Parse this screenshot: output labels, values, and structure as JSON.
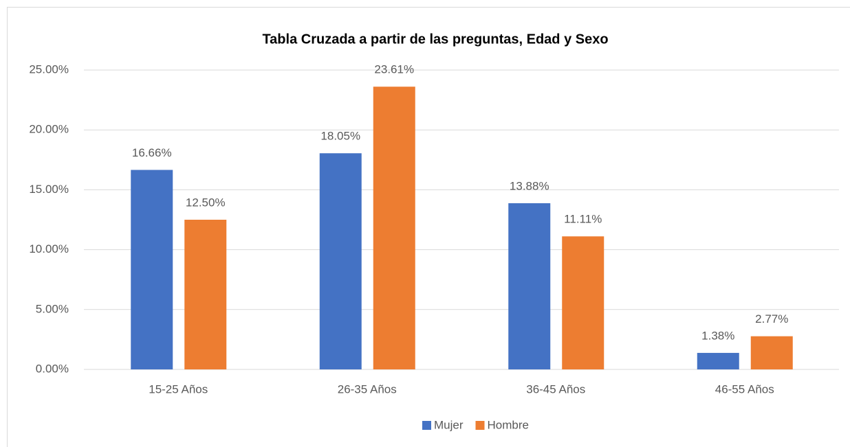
{
  "chart_data": {
    "type": "bar",
    "title": "Tabla Cruzada a partir de las preguntas, Edad y Sexo",
    "categories": [
      "15-25 Años",
      "26-35 Años",
      "36-45 Años",
      "46-55 Años"
    ],
    "series": [
      {
        "name": "Mujer",
        "color": "#4472c4",
        "values": [
          16.66,
          18.05,
          13.88,
          1.38
        ],
        "value_labels": [
          "16.66%",
          "18.05%",
          "13.88%",
          "1.38%"
        ]
      },
      {
        "name": "Hombre",
        "color": "#ed7d31",
        "values": [
          12.5,
          23.61,
          11.11,
          2.77
        ],
        "value_labels": [
          "12.50%",
          "23.61%",
          "11.11%",
          "2.77%"
        ]
      }
    ],
    "ylim": [
      0,
      25
    ],
    "yticks": [
      {
        "value": 0,
        "label": "0.00%"
      },
      {
        "value": 5,
        "label": "5.00%"
      },
      {
        "value": 10,
        "label": "10.00%"
      },
      {
        "value": 15,
        "label": "15.00%"
      },
      {
        "value": 20,
        "label": "20.00%"
      },
      {
        "value": 25,
        "label": "25.00%"
      }
    ],
    "grid": true,
    "legend": "bottom"
  }
}
